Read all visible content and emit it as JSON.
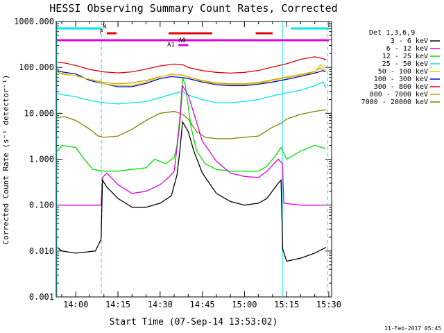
{
  "chart_data": {
    "type": "line",
    "title": "HESSI Observing Summary Count Rates, Corrected",
    "xlabel": "Start Time (07-Sep-14 13:53:02)",
    "ylabel": "Corrected Count Rate (s⁻¹ detector⁻¹)",
    "footer_date": "11-Feb-2017 05:45",
    "legend_title": "Det 1,3,6,9",
    "y_log": true,
    "ylim": [
      0.001,
      1000
    ],
    "y_ticks": [
      {
        "v": 1000,
        "label": "1000.000"
      },
      {
        "v": 100,
        "label": "100.000"
      },
      {
        "v": 10,
        "label": "10.000"
      },
      {
        "v": 1,
        "label": "1.000"
      },
      {
        "v": 0.1,
        "label": "0.100"
      },
      {
        "v": 0.01,
        "label": "0.010"
      },
      {
        "v": 0.001,
        "label": "0.001"
      }
    ],
    "xlim_minutes": [
      53.03,
      151.0
    ],
    "x_ticks": [
      {
        "m": 60,
        "label": "14:00"
      },
      {
        "m": 75,
        "label": "14:15"
      },
      {
        "m": 90,
        "label": "14:30"
      },
      {
        "m": 105,
        "label": "14:45"
      },
      {
        "m": 120,
        "label": "15:00"
      },
      {
        "m": 135,
        "label": "15:15"
      },
      {
        "m": 150,
        "label": "15:30"
      }
    ],
    "grid": false,
    "legend_position": "right-outside",
    "annotations": [
      {
        "label": "N",
        "color": "#00e5e5",
        "segments": [
          [
            53.3,
            69.0
          ],
          [
            136.5,
            150.0
          ]
        ],
        "row": "N"
      },
      {
        "label": "F",
        "color": "#e00000",
        "segments": [
          [
            71.0,
            74.5
          ],
          [
            93.0,
            108.5
          ],
          [
            124.0,
            130.0
          ]
        ],
        "row": "F"
      },
      {
        "label": "A1",
        "color": "#e000e0",
        "segments": [
          [
            53.3,
            150.0
          ]
        ],
        "row": "A1"
      },
      {
        "label": "A0",
        "color": "#e000e0",
        "segments": [
          [
            96.5,
            100.0
          ]
        ],
        "row": "A0"
      }
    ],
    "vertical_lines": [
      {
        "m": 53.3,
        "color": "#00e5e5",
        "style": "solid"
      },
      {
        "m": 69.1,
        "color": "#00e5e5",
        "style": "dashed"
      },
      {
        "m": 133.5,
        "color": "#00e5e5",
        "style": "solid"
      },
      {
        "m": 149.5,
        "color": "#00e5e5",
        "style": "dashed"
      }
    ],
    "series": [
      {
        "name": "3 - 6 keV",
        "color": "#000000",
        "points": [
          [
            53.5,
            0.012
          ],
          [
            55,
            0.01
          ],
          [
            60,
            0.009
          ],
          [
            67,
            0.01
          ],
          [
            69,
            0.018
          ],
          [
            69.5,
            0.35
          ],
          [
            71,
            0.25
          ],
          [
            75,
            0.14
          ],
          [
            80,
            0.09
          ],
          [
            85,
            0.09
          ],
          [
            90,
            0.11
          ],
          [
            94,
            0.16
          ],
          [
            96,
            0.45
          ],
          [
            97,
            1.5
          ],
          [
            98,
            6.5
          ],
          [
            100,
            4.0
          ],
          [
            102,
            1.5
          ],
          [
            105,
            0.5
          ],
          [
            110,
            0.18
          ],
          [
            115,
            0.12
          ],
          [
            120,
            0.1
          ],
          [
            125,
            0.11
          ],
          [
            128,
            0.14
          ],
          [
            132,
            0.3
          ],
          [
            133,
            0.35
          ],
          [
            133.6,
            0.011
          ],
          [
            135,
            0.006
          ],
          [
            140,
            0.007
          ],
          [
            145,
            0.009
          ],
          [
            149,
            0.012
          ]
        ]
      },
      {
        "name": "6 - 12 keV",
        "color": "#e000e0",
        "points": [
          [
            53.5,
            0.1
          ],
          [
            60,
            0.1
          ],
          [
            67,
            0.1
          ],
          [
            69,
            0.1
          ],
          [
            69.5,
            0.4
          ],
          [
            71,
            0.5
          ],
          [
            75,
            0.28
          ],
          [
            80,
            0.18
          ],
          [
            85,
            0.2
          ],
          [
            90,
            0.28
          ],
          [
            93,
            0.4
          ],
          [
            95,
            0.55
          ],
          [
            97,
            6.0
          ],
          [
            98,
            40
          ],
          [
            100,
            25
          ],
          [
            102,
            10
          ],
          [
            105,
            2.5
          ],
          [
            110,
            0.9
          ],
          [
            115,
            0.5
          ],
          [
            120,
            0.42
          ],
          [
            125,
            0.4
          ],
          [
            128,
            0.55
          ],
          [
            132,
            1.0
          ],
          [
            133.5,
            0.8
          ],
          [
            134,
            0.11
          ],
          [
            140,
            0.1
          ],
          [
            145,
            0.1
          ],
          [
            149,
            0.1
          ]
        ]
      },
      {
        "name": "12 - 25 keV",
        "color": "#00e000",
        "points": [
          [
            53.5,
            1.5
          ],
          [
            55,
            2.0
          ],
          [
            60,
            1.8
          ],
          [
            63,
            1.0
          ],
          [
            66,
            0.6
          ],
          [
            70,
            0.55
          ],
          [
            75,
            0.55
          ],
          [
            80,
            0.6
          ],
          [
            85,
            0.65
          ],
          [
            88,
            1.0
          ],
          [
            92,
            0.8
          ],
          [
            95,
            1.1
          ],
          [
            96,
            2.0
          ],
          [
            97,
            8.0
          ],
          [
            98,
            60
          ],
          [
            99,
            40
          ],
          [
            101,
            5.0
          ],
          [
            103,
            1.5
          ],
          [
            106,
            0.8
          ],
          [
            110,
            0.6
          ],
          [
            115,
            0.55
          ],
          [
            120,
            0.55
          ],
          [
            125,
            0.55
          ],
          [
            128,
            0.7
          ],
          [
            131,
            1.2
          ],
          [
            133,
            1.8
          ],
          [
            135,
            1.0
          ],
          [
            140,
            1.5
          ],
          [
            145,
            2.0
          ],
          [
            149,
            1.7
          ]
        ]
      },
      {
        "name": "25 - 50 keV",
        "color": "#00e5e5",
        "points": [
          [
            53.5,
            27
          ],
          [
            56,
            25
          ],
          [
            60,
            23
          ],
          [
            65,
            19
          ],
          [
            70,
            17
          ],
          [
            75,
            16
          ],
          [
            80,
            17
          ],
          [
            85,
            18
          ],
          [
            90,
            22
          ],
          [
            95,
            27
          ],
          [
            98,
            30
          ],
          [
            100,
            25
          ],
          [
            105,
            20
          ],
          [
            110,
            17
          ],
          [
            115,
            17
          ],
          [
            120,
            18
          ],
          [
            125,
            20
          ],
          [
            130,
            24
          ],
          [
            135,
            28
          ],
          [
            140,
            32
          ],
          [
            145,
            40
          ],
          [
            148,
            48
          ],
          [
            149,
            35
          ]
        ]
      },
      {
        "name": "50 - 100 keV",
        "color": "#e0c800",
        "points": [
          [
            53.5,
            70
          ],
          [
            55,
            75
          ],
          [
            60,
            65
          ],
          [
            65,
            55
          ],
          [
            70,
            44
          ],
          [
            75,
            40
          ],
          [
            80,
            40
          ],
          [
            85,
            48
          ],
          [
            90,
            62
          ],
          [
            94,
            72
          ],
          [
            97,
            68
          ],
          [
            100,
            62
          ],
          [
            105,
            50
          ],
          [
            110,
            44
          ],
          [
            115,
            42
          ],
          [
            120,
            42
          ],
          [
            125,
            45
          ],
          [
            130,
            52
          ],
          [
            135,
            60
          ],
          [
            140,
            68
          ],
          [
            145,
            78
          ],
          [
            147,
            115
          ],
          [
            148,
            100
          ],
          [
            149,
            80
          ]
        ]
      },
      {
        "name": "100 - 300 keV",
        "color": "#0000e0",
        "points": [
          [
            53.5,
            85
          ],
          [
            55,
            80
          ],
          [
            60,
            72
          ],
          [
            65,
            52
          ],
          [
            70,
            44
          ],
          [
            75,
            38
          ],
          [
            80,
            38
          ],
          [
            85,
            45
          ],
          [
            90,
            57
          ],
          [
            94,
            63
          ],
          [
            98,
            60
          ],
          [
            100,
            57
          ],
          [
            105,
            48
          ],
          [
            110,
            42
          ],
          [
            115,
            40
          ],
          [
            120,
            40
          ],
          [
            125,
            43
          ],
          [
            130,
            48
          ],
          [
            135,
            55
          ],
          [
            140,
            64
          ],
          [
            145,
            75
          ],
          [
            148,
            85
          ],
          [
            149,
            80
          ]
        ]
      },
      {
        "name": "300 - 800 keV",
        "color": "#e00000",
        "points": [
          [
            53.5,
            130
          ],
          [
            56,
            125
          ],
          [
            60,
            110
          ],
          [
            65,
            90
          ],
          [
            70,
            80
          ],
          [
            75,
            76
          ],
          [
            80,
            80
          ],
          [
            85,
            92
          ],
          [
            90,
            108
          ],
          [
            95,
            118
          ],
          [
            98,
            115
          ],
          [
            100,
            100
          ],
          [
            105,
            85
          ],
          [
            110,
            78
          ],
          [
            115,
            75
          ],
          [
            120,
            78
          ],
          [
            125,
            86
          ],
          [
            130,
            102
          ],
          [
            135,
            120
          ],
          [
            140,
            150
          ],
          [
            145,
            170
          ],
          [
            148,
            155
          ],
          [
            149,
            145
          ]
        ]
      },
      {
        "name": "800 - 7000 keV",
        "color": "#cc9900",
        "points": [
          [
            53.5,
            80
          ],
          [
            55,
            72
          ],
          [
            60,
            66
          ],
          [
            65,
            55
          ],
          [
            70,
            47
          ],
          [
            75,
            44
          ],
          [
            80,
            46
          ],
          [
            85,
            52
          ],
          [
            90,
            63
          ],
          [
            94,
            70
          ],
          [
            98,
            68
          ],
          [
            100,
            62
          ],
          [
            105,
            52
          ],
          [
            110,
            46
          ],
          [
            115,
            44
          ],
          [
            120,
            44
          ],
          [
            125,
            47
          ],
          [
            130,
            54
          ],
          [
            135,
            62
          ],
          [
            140,
            70
          ],
          [
            145,
            82
          ],
          [
            147,
            98
          ],
          [
            148,
            85
          ],
          [
            149,
            80
          ]
        ]
      },
      {
        "name": "7000 - 20000 keV",
        "color": "#808000",
        "points": [
          [
            53.5,
            8.0
          ],
          [
            56,
            8.5
          ],
          [
            60,
            7.0
          ],
          [
            65,
            4.5
          ],
          [
            68,
            3.2
          ],
          [
            70,
            3.0
          ],
          [
            75,
            3.2
          ],
          [
            80,
            4.5
          ],
          [
            85,
            7.0
          ],
          [
            90,
            10
          ],
          [
            95,
            11
          ],
          [
            98,
            9.5
          ],
          [
            100,
            7.5
          ],
          [
            103,
            4.0
          ],
          [
            106,
            3.0
          ],
          [
            110,
            2.8
          ],
          [
            115,
            2.8
          ],
          [
            120,
            3.0
          ],
          [
            125,
            3.2
          ],
          [
            130,
            5.0
          ],
          [
            133,
            6.0
          ],
          [
            135,
            7.5
          ],
          [
            140,
            9.5
          ],
          [
            145,
            11
          ],
          [
            149,
            12
          ]
        ]
      }
    ]
  }
}
